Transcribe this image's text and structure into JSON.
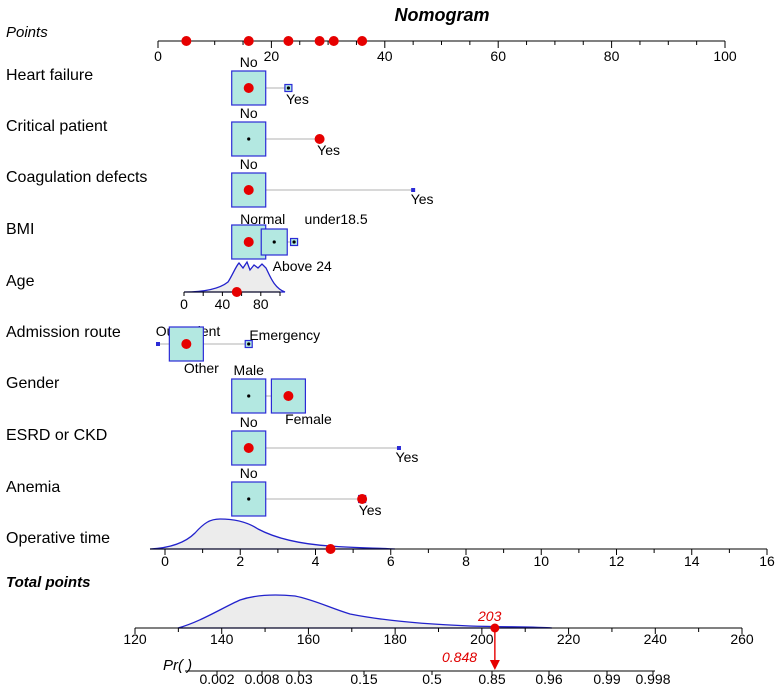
{
  "chart_data": {
    "type": "nomogram",
    "title": "Nomogram",
    "points_axis": {
      "label": "Points",
      "ticks": [
        0,
        20,
        40,
        60,
        80,
        100
      ],
      "range": [
        0,
        100
      ],
      "markers": [
        5,
        16,
        23,
        28.5,
        31,
        36
      ]
    },
    "variables": [
      {
        "name": "Heart failure",
        "levels": [
          {
            "label": "No",
            "points": 16,
            "size": "large",
            "selected": true
          },
          {
            "label": "Yes",
            "points": 23,
            "size": "small",
            "selected": false
          }
        ]
      },
      {
        "name": "Critical patient",
        "levels": [
          {
            "label": "No",
            "points": 16,
            "size": "large",
            "selected": false
          },
          {
            "label": "Yes",
            "points": 28.5,
            "size": "tiny",
            "selected": true
          }
        ]
      },
      {
        "name": "Coagulation defects",
        "levels": [
          {
            "label": "No",
            "points": 16,
            "size": "large",
            "selected": true
          },
          {
            "label": "Yes",
            "points": 45,
            "size": "tiny",
            "selected": false
          }
        ]
      },
      {
        "name": "BMI",
        "levels": [
          {
            "label": "Normal",
            "points": 16,
            "size": "large",
            "selected": true
          },
          {
            "label": "Above 24",
            "points": 20.5,
            "size": "medium",
            "selected": false
          },
          {
            "label": "under18.5",
            "points": 24,
            "size": "small",
            "selected": false
          }
        ]
      },
      {
        "name": "Admission route",
        "levels": [
          {
            "label": "Outpatient",
            "points": 0,
            "size": "tiny",
            "selected": false
          },
          {
            "label": "Other",
            "points": 5,
            "size": "large",
            "selected": true
          },
          {
            "label": "Emergency",
            "points": 16,
            "size": "small",
            "selected": false
          }
        ]
      },
      {
        "name": "Gender",
        "levels": [
          {
            "label": "Male",
            "points": 16,
            "size": "large",
            "selected": false
          },
          {
            "label": "Female",
            "points": 23,
            "size": "large",
            "selected": true
          }
        ]
      },
      {
        "name": "ESRD or CKD",
        "levels": [
          {
            "label": "No",
            "points": 16,
            "size": "large",
            "selected": true
          },
          {
            "label": "Yes",
            "points": 42.5,
            "size": "tiny",
            "selected": false
          }
        ]
      },
      {
        "name": "Anemia",
        "levels": [
          {
            "label": "No",
            "points": 16,
            "size": "large",
            "selected": false
          },
          {
            "label": "Yes",
            "points": 36,
            "size": "small",
            "selected": true
          }
        ]
      }
    ],
    "age": {
      "name": "Age",
      "ticks": [
        0,
        40,
        80
      ],
      "value": 55
    },
    "operative_time": {
      "name": "Operative time",
      "ticks": [
        0,
        2,
        4,
        6,
        8,
        10,
        12,
        14,
        16
      ],
      "range": [
        0,
        16
      ],
      "value": 4.4
    },
    "total_points": {
      "name": "Total points",
      "ticks": [
        120,
        140,
        160,
        180,
        200,
        220,
        240,
        260
      ],
      "range": [
        120,
        260
      ],
      "value": 203
    },
    "probability": {
      "name": "Pr( )",
      "ticks": [
        "0.002",
        "0.008",
        "0.03",
        "0.15",
        "0.5",
        "0.85",
        "0.96",
        "0.99",
        "0.998"
      ],
      "value": "0.848"
    },
    "value_labels": {
      "total": "203",
      "prob": "0.848"
    }
  },
  "colors": {
    "box_fill": "#b3e8e1",
    "box_stroke": "#2b2bd6",
    "marker": "#e60000",
    "density_line": "#2222cc",
    "density_fill": "#ececec",
    "axis": "#000000"
  }
}
